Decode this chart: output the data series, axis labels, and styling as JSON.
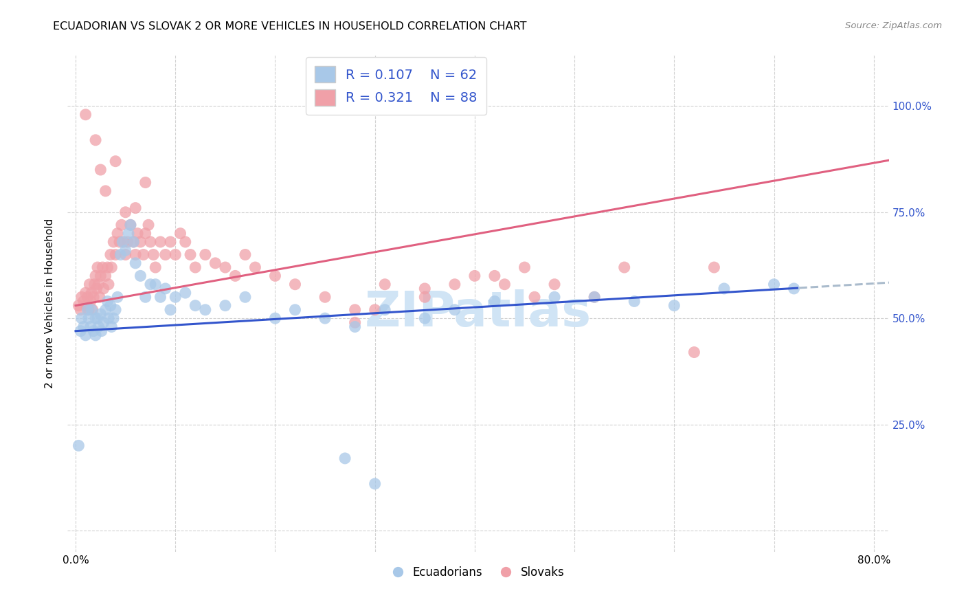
{
  "title": "ECUADORIAN VS SLOVAK 2 OR MORE VEHICLES IN HOUSEHOLD CORRELATION CHART",
  "source": "Source: ZipAtlas.com",
  "ylabel_label": "2 or more Vehicles in Household",
  "legend_labels": [
    "Ecuadorians",
    "Slovaks"
  ],
  "R_ecuador": 0.107,
  "N_ecuador": 62,
  "R_slovak": 0.321,
  "N_slovak": 88,
  "color_ecuador": "#a8c8e8",
  "color_slovak": "#f0a0a8",
  "trendline_ecuador_color": "#3355cc",
  "trendline_slovak_color": "#e06080",
  "trendline_extrap_color": "#aabbcc",
  "text_blue": "#3355cc",
  "watermark": "ZIPatlas",
  "watermark_color": "#d0e4f5",
  "x_ticks": [
    0.0,
    0.1,
    0.2,
    0.3,
    0.4,
    0.5,
    0.6,
    0.7,
    0.8
  ],
  "x_tick_labels": [
    "0.0%",
    "",
    "",
    "",
    "",
    "",
    "",
    "",
    "80.0%"
  ],
  "y_ticks": [
    0.0,
    0.25,
    0.5,
    0.75,
    1.0
  ],
  "y_tick_labels_right": [
    "",
    "25.0%",
    "50.0%",
    "75.0%",
    "100.0%"
  ],
  "xlim": [
    -0.008,
    0.815
  ],
  "ylim": [
    -0.05,
    1.12
  ],
  "ec_slope": 0.14,
  "ec_intercept": 0.47,
  "sk_slope": 0.42,
  "sk_intercept": 0.53,
  "trendline_solid_end_ec": 0.725,
  "ec_x": [
    0.003,
    0.005,
    0.006,
    0.008,
    0.01,
    0.012,
    0.013,
    0.015,
    0.016,
    0.018,
    0.02,
    0.02,
    0.022,
    0.023,
    0.025,
    0.026,
    0.028,
    0.03,
    0.032,
    0.033,
    0.035,
    0.036,
    0.038,
    0.04,
    0.042,
    0.045,
    0.047,
    0.05,
    0.053,
    0.055,
    0.058,
    0.06,
    0.065,
    0.07,
    0.075,
    0.08,
    0.085,
    0.09,
    0.095,
    0.1,
    0.11,
    0.12,
    0.13,
    0.15,
    0.17,
    0.2,
    0.22,
    0.25,
    0.28,
    0.31,
    0.35,
    0.38,
    0.42,
    0.48,
    0.52,
    0.56,
    0.6,
    0.65,
    0.7,
    0.72,
    0.27,
    0.3
  ],
  "ec_y": [
    0.2,
    0.47,
    0.5,
    0.48,
    0.46,
    0.52,
    0.5,
    0.48,
    0.52,
    0.47,
    0.46,
    0.5,
    0.5,
    0.48,
    0.51,
    0.47,
    0.49,
    0.52,
    0.54,
    0.5,
    0.53,
    0.48,
    0.5,
    0.52,
    0.55,
    0.65,
    0.68,
    0.66,
    0.7,
    0.72,
    0.68,
    0.63,
    0.6,
    0.55,
    0.58,
    0.58,
    0.55,
    0.57,
    0.52,
    0.55,
    0.56,
    0.53,
    0.52,
    0.53,
    0.55,
    0.5,
    0.52,
    0.5,
    0.48,
    0.52,
    0.5,
    0.52,
    0.54,
    0.55,
    0.55,
    0.54,
    0.53,
    0.57,
    0.58,
    0.57,
    0.17,
    0.11
  ],
  "sk_x": [
    0.003,
    0.005,
    0.006,
    0.008,
    0.01,
    0.011,
    0.012,
    0.013,
    0.014,
    0.015,
    0.016,
    0.017,
    0.018,
    0.019,
    0.02,
    0.021,
    0.022,
    0.023,
    0.024,
    0.025,
    0.027,
    0.028,
    0.03,
    0.032,
    0.033,
    0.035,
    0.036,
    0.038,
    0.04,
    0.042,
    0.044,
    0.046,
    0.048,
    0.05,
    0.052,
    0.055,
    0.058,
    0.06,
    0.062,
    0.065,
    0.068,
    0.07,
    0.073,
    0.075,
    0.078,
    0.08,
    0.085,
    0.09,
    0.095,
    0.1,
    0.105,
    0.11,
    0.115,
    0.12,
    0.13,
    0.14,
    0.15,
    0.16,
    0.17,
    0.18,
    0.2,
    0.22,
    0.25,
    0.28,
    0.31,
    0.35,
    0.38,
    0.42,
    0.45,
    0.48,
    0.52,
    0.55,
    0.28,
    0.3,
    0.35,
    0.4,
    0.43,
    0.46,
    0.01,
    0.02,
    0.025,
    0.03,
    0.04,
    0.05,
    0.06,
    0.07,
    0.62,
    0.64
  ],
  "sk_y": [
    0.53,
    0.52,
    0.55,
    0.54,
    0.56,
    0.53,
    0.55,
    0.52,
    0.58,
    0.54,
    0.56,
    0.52,
    0.55,
    0.58,
    0.6,
    0.57,
    0.62,
    0.58,
    0.55,
    0.6,
    0.62,
    0.57,
    0.6,
    0.62,
    0.58,
    0.65,
    0.62,
    0.68,
    0.65,
    0.7,
    0.68,
    0.72,
    0.68,
    0.65,
    0.68,
    0.72,
    0.68,
    0.65,
    0.7,
    0.68,
    0.65,
    0.7,
    0.72,
    0.68,
    0.65,
    0.62,
    0.68,
    0.65,
    0.68,
    0.65,
    0.7,
    0.68,
    0.65,
    0.62,
    0.65,
    0.63,
    0.62,
    0.6,
    0.65,
    0.62,
    0.6,
    0.58,
    0.55,
    0.52,
    0.58,
    0.55,
    0.58,
    0.6,
    0.62,
    0.58,
    0.55,
    0.62,
    0.49,
    0.52,
    0.57,
    0.6,
    0.58,
    0.55,
    0.98,
    0.92,
    0.85,
    0.8,
    0.87,
    0.75,
    0.76,
    0.82,
    0.42,
    0.62
  ]
}
